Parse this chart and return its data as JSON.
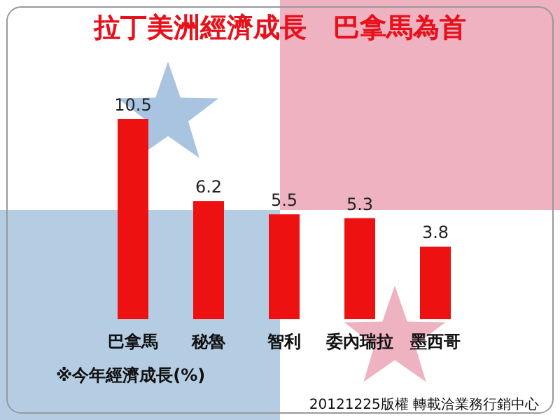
{
  "chart_data": {
    "type": "bar",
    "title": "拉丁美洲經濟成長　巴拿馬為首",
    "categories": [
      "巴拿馬",
      "秘魯",
      "智利",
      "委內瑞拉",
      "墨西哥"
    ],
    "values": [
      10.5,
      6.2,
      5.5,
      5.3,
      3.8
    ],
    "color": "#ee1111",
    "data_labels": true,
    "annotations": [
      "※今年經濟成長(%)",
      "20121225版權 轉載洽業務行銷中心"
    ]
  }
}
